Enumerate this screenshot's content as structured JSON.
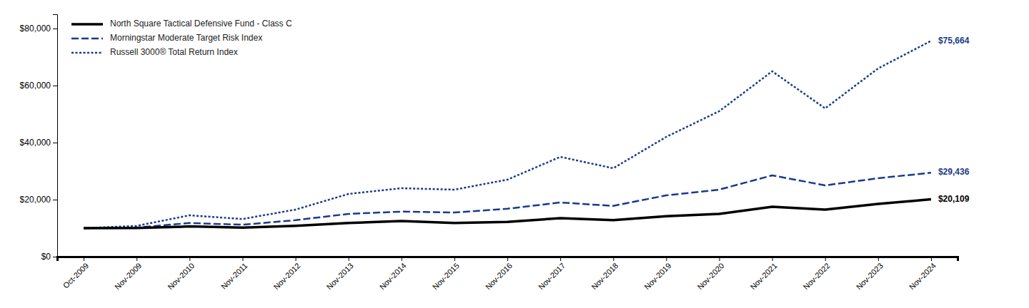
{
  "chart_data": {
    "type": "line",
    "categories": [
      "Oct-2009",
      "Nov-2009",
      "Nov-2010",
      "Nov-2011",
      "Nov-2012",
      "Nov-2013",
      "Nov-2014",
      "Nov-2015",
      "Nov-2016",
      "Nov-2017",
      "Nov-2018",
      "Nov-2019",
      "Nov-2020",
      "Nov-2021",
      "Nov-2022",
      "Nov-2023",
      "Nov-2024"
    ],
    "series": [
      {
        "name": "North Square Tactical Defensive Fund - Class C",
        "color": "#000000",
        "line_style": "solid",
        "values": [
          10000,
          10050,
          10600,
          10200,
          10800,
          11800,
          12500,
          11800,
          12200,
          13500,
          12800,
          14200,
          15000,
          17500,
          16500,
          18500,
          20109
        ],
        "value_labels": [
          null,
          null,
          null,
          null,
          null,
          null,
          null,
          null,
          null,
          null,
          null,
          null,
          null,
          null,
          null,
          null,
          "$20,109"
        ]
      },
      {
        "name": "Morningstar Moderate Target Risk Index",
        "color": "#1a3a8c",
        "line_style": "dashed",
        "values": [
          10000,
          10200,
          11800,
          11200,
          12800,
          15000,
          15800,
          15500,
          16800,
          19000,
          17800,
          21500,
          23500,
          28500,
          25000,
          27500,
          29436
        ],
        "value_labels": [
          null,
          null,
          null,
          null,
          null,
          null,
          null,
          null,
          null,
          null,
          null,
          null,
          null,
          null,
          null,
          null,
          "$29,436"
        ]
      },
      {
        "name": "Russell 3000® Total Return Index",
        "color": "#1a3a8c",
        "line_style": "dotted",
        "values": [
          10000,
          10800,
          14500,
          13200,
          16500,
          22000,
          24000,
          23500,
          27000,
          35000,
          31000,
          42000,
          51000,
          65000,
          52000,
          66000,
          75664
        ],
        "value_labels": [
          null,
          null,
          null,
          null,
          null,
          null,
          null,
          null,
          null,
          null,
          null,
          null,
          null,
          null,
          null,
          null,
          "$75,664"
        ]
      }
    ],
    "ylim": [
      0,
      85000
    ],
    "yticks": [
      {
        "value": 0,
        "label": "$0"
      },
      {
        "value": 20000,
        "label": "$20,000"
      },
      {
        "value": 40000,
        "label": "$40,000"
      },
      {
        "value": 60000,
        "label": "$60,000"
      },
      {
        "value": 80000,
        "label": "$80,000"
      }
    ],
    "grid": false,
    "legend": "upper left"
  }
}
